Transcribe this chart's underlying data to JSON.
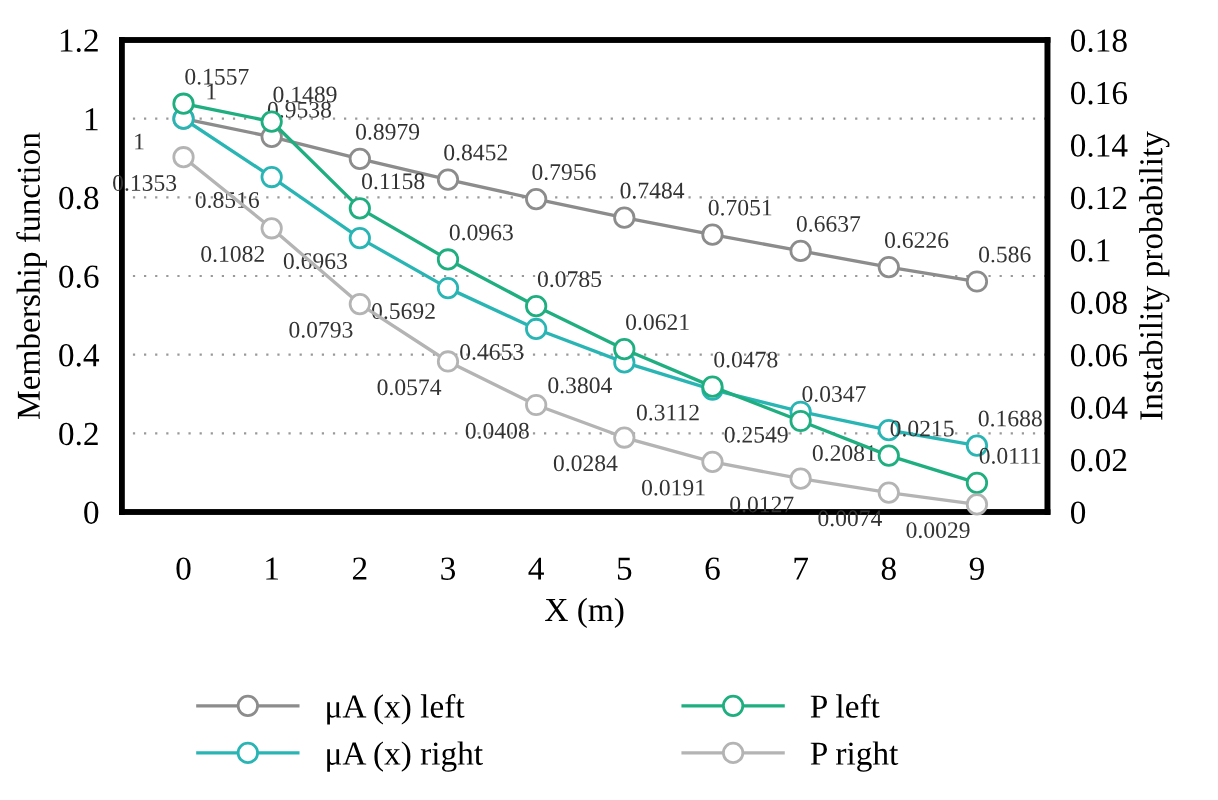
{
  "chart_data": {
    "type": "line",
    "xlabel": "X (m)",
    "ylabel": "Membership function",
    "y2label": "Instability probability",
    "categories": [
      "0",
      "1",
      "2",
      "3",
      "4",
      "5",
      "6",
      "7",
      "8",
      "9"
    ],
    "series": [
      {
        "name": "μA (x) left",
        "color": "#8c8c8c",
        "values": [
          1,
          0.9538,
          0.8979,
          0.8452,
          0.7956,
          0.7484,
          0.7051,
          0.6637,
          0.6226,
          0.586
        ]
      },
      {
        "name": "μA (x) right",
        "color": "#2ab5b5",
        "values": [
          1,
          0.8516,
          0.6963,
          0.5692,
          0.4653,
          0.3804,
          0.3112,
          0.2549,
          0.2081,
          0.1688
        ]
      },
      {
        "name": "P left",
        "color": "#1fae7f",
        "axis": "y2",
        "values": [
          0.1557,
          0.1489,
          0.1158,
          0.0963,
          0.0785,
          0.0621,
          0.0478,
          0.0347,
          0.0215,
          0.0111
        ]
      },
      {
        "name": "P right",
        "color": "#b4b4b4",
        "axis": "y2",
        "values": [
          0.1353,
          0.1082,
          0.0793,
          0.0574,
          0.0408,
          0.0284,
          0.0191,
          0.0127,
          0.0074,
          0.0029
        ]
      }
    ],
    "ylim": [
      0,
      1.2
    ],
    "yticks": [
      0,
      0.2,
      0.4,
      0.6,
      0.8,
      1,
      1.2
    ],
    "y2lim": [
      0,
      0.18
    ],
    "y2ticks": [
      0,
      0.02,
      0.04,
      0.06,
      0.08,
      0.1,
      0.12,
      0.14,
      0.16,
      0.18
    ],
    "grid": "y",
    "legend": "bottom",
    "marker": "circle",
    "line_style": "solid",
    "data_labels": true
  }
}
